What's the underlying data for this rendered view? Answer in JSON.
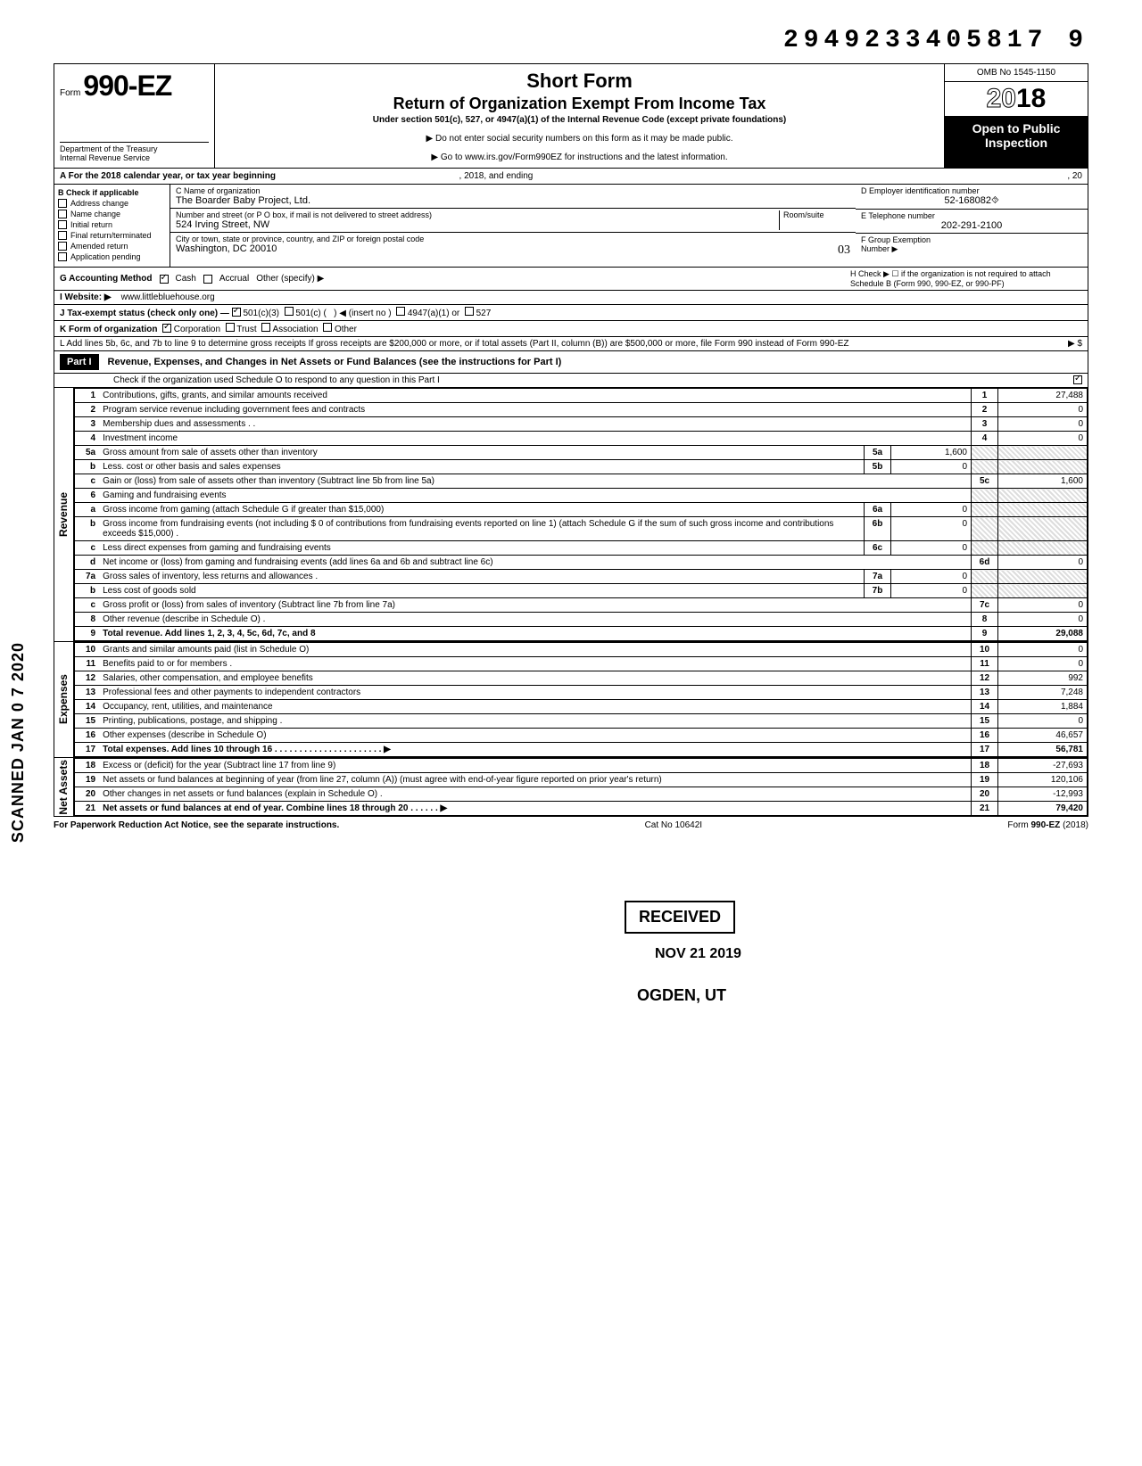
{
  "doc_id": "2949233405817 9",
  "header": {
    "form_prefix": "Form",
    "form_number": "990-EZ",
    "dept1": "Department of the Treasury",
    "dept2": "Internal Revenue Service",
    "title1": "Short Form",
    "title2": "Return of Organization Exempt From Income Tax",
    "subtitle": "Under section 501(c), 527, or 4947(a)(1) of the Internal Revenue Code (except private foundations)",
    "note1": "▶ Do not enter social security numbers on this form as it may be made public.",
    "note2": "▶ Go to www.irs.gov/Form990EZ for instructions and the latest information.",
    "omb": "OMB No 1545-1150",
    "year_prefix": "20",
    "year_suffix": "18",
    "open1": "Open to Public",
    "open2": "Inspection"
  },
  "rowA": {
    "left": "A For the 2018 calendar year, or tax year beginning",
    "mid": ", 2018, and ending",
    "right": ", 20"
  },
  "colB": {
    "header": "B Check if applicable",
    "items": [
      "Address change",
      "Name change",
      "Initial return",
      "Final return/terminated",
      "Amended return",
      "Application pending"
    ]
  },
  "colC": {
    "name_label": "C Name of organization",
    "name_val": "The Boarder Baby Project, Ltd.",
    "addr_label": "Number and street (or P O box, if mail is not delivered to street address)",
    "addr_room": "Room/suite",
    "addr_val": "524 Irving Street, NW",
    "city_label": "City or town, state or province, country, and ZIP or foreign postal code",
    "city_val": "Washington, DC 20010",
    "city_hand": "03"
  },
  "colDE": {
    "d_label": "D Employer identification number",
    "d_val": "52-168082⯑",
    "e_label": "E Telephone number",
    "e_val": "202-291-2100",
    "f_label": "F Group Exemption",
    "f_label2": "Number ▶"
  },
  "rowG": {
    "label": "G Accounting Method",
    "opt1": "Cash",
    "opt2": "Accrual",
    "opt3": "Other (specify) ▶",
    "h_label": "H Check ▶ ☐ if the organization is not required to attach Schedule B (Form 990, 990-EZ, or 990-PF)"
  },
  "rowI": {
    "label": "I  Website: ▶",
    "val": "www.littlebluehouse.org"
  },
  "rowJ": {
    "label": "J Tax-exempt status (check only one) —",
    "o1": "501(c)(3)",
    "o2": "501(c) (",
    "o2b": ") ◀ (insert no )",
    "o3": "4947(a)(1) or",
    "o4": "527"
  },
  "rowK": {
    "label": "K Form of organization",
    "o1": "Corporation",
    "o2": "Trust",
    "o3": "Association",
    "o4": "Other"
  },
  "rowL": {
    "text": "L Add lines 5b, 6c, and 7b to line 9 to determine gross receipts If gross receipts are $200,000 or more, or if total assets (Part II, column (B)) are $500,000 or more, file Form 990 instead of Form 990-EZ",
    "arrow": "▶   $"
  },
  "partI": {
    "label": "Part I",
    "title": "Revenue, Expenses, and Changes in Net Assets or Fund Balances (see the instructions for Part I)",
    "check": "Check if the organization used Schedule O to respond to any question in this Part I",
    "checkmark": "✓"
  },
  "sections": {
    "revenue": "Revenue",
    "expenses": "Expenses",
    "netassets": "Net Assets"
  },
  "lines": [
    {
      "n": "1",
      "d": "Contributions, gifts, grants, and similar amounts received",
      "box": "1",
      "amt": "27,488"
    },
    {
      "n": "2",
      "d": "Program service revenue including government fees and contracts",
      "box": "2",
      "amt": "0"
    },
    {
      "n": "3",
      "d": "Membership dues and assessments . .",
      "box": "3",
      "amt": "0"
    },
    {
      "n": "4",
      "d": "Investment income",
      "box": "4",
      "amt": "0"
    },
    {
      "n": "5a",
      "d": "Gross amount from sale of assets other than inventory",
      "ib": "5a",
      "ia": "1,600",
      "grey": true
    },
    {
      "n": "b",
      "d": "Less. cost or other basis and sales expenses",
      "ib": "5b",
      "ia": "0",
      "grey": true
    },
    {
      "n": "c",
      "d": "Gain or (loss) from sale of assets other than inventory (Subtract line 5b from line 5a)",
      "box": "5c",
      "amt": "1,600"
    },
    {
      "n": "6",
      "d": "Gaming and fundraising events",
      "grey": true,
      "noamt": true
    },
    {
      "n": "a",
      "d": "Gross income from gaming (attach Schedule G if greater than $15,000)",
      "ib": "6a",
      "ia": "0",
      "grey": true
    },
    {
      "n": "b",
      "d": "Gross income from fundraising events (not including $                    0 of contributions from fundraising events reported on line 1) (attach Schedule G if the sum of such gross income and contributions exceeds $15,000) .",
      "ib": "6b",
      "ia": "0",
      "grey": true
    },
    {
      "n": "c",
      "d": "Less direct expenses from gaming and fundraising events",
      "ib": "6c",
      "ia": "0",
      "grey": true
    },
    {
      "n": "d",
      "d": "Net income or (loss) from gaming and fundraising events (add lines 6a and 6b and subtract line 6c)",
      "box": "6d",
      "amt": "0"
    },
    {
      "n": "7a",
      "d": "Gross sales of inventory, less returns and allowances .",
      "ib": "7a",
      "ia": "0",
      "grey": true
    },
    {
      "n": "b",
      "d": "Less cost of goods sold",
      "ib": "7b",
      "ia": "0",
      "grey": true
    },
    {
      "n": "c",
      "d": "Gross profit or (loss) from sales of inventory (Subtract line 7b from line 7a)",
      "box": "7c",
      "amt": "0"
    },
    {
      "n": "8",
      "d": "Other revenue (describe in Schedule O) .",
      "box": "8",
      "amt": "0"
    },
    {
      "n": "9",
      "d": "Total revenue. Add lines 1, 2, 3, 4, 5c, 6d, 7c, and 8",
      "box": "9",
      "amt": "29,088",
      "bold": true
    }
  ],
  "exp_lines": [
    {
      "n": "10",
      "d": "Grants and similar amounts paid (list in Schedule O)",
      "box": "10",
      "amt": "0"
    },
    {
      "n": "11",
      "d": "Benefits paid to or for members .",
      "box": "11",
      "amt": "0"
    },
    {
      "n": "12",
      "d": "Salaries, other compensation, and employee benefits",
      "box": "12",
      "amt": "992"
    },
    {
      "n": "13",
      "d": "Professional fees and other payments to independent contractors",
      "box": "13",
      "amt": "7,248"
    },
    {
      "n": "14",
      "d": "Occupancy, rent, utilities, and maintenance",
      "box": "14",
      "amt": "1,884"
    },
    {
      "n": "15",
      "d": "Printing, publications, postage, and shipping .",
      "box": "15",
      "amt": "0"
    },
    {
      "n": "16",
      "d": "Other expenses (describe in Schedule O)",
      "box": "16",
      "amt": "46,657"
    },
    {
      "n": "17",
      "d": "Total expenses. Add lines 10 through 16 .   .   .   .   .   .   .   .   .   .   .   .   .   .   .   .   .   .   .   .   .   . ▶",
      "box": "17",
      "amt": "56,781",
      "bold": true
    }
  ],
  "na_lines": [
    {
      "n": "18",
      "d": "Excess or (deficit) for the year (Subtract line 17 from line 9)",
      "box": "18",
      "amt": "-27,693"
    },
    {
      "n": "19",
      "d": "Net assets or fund balances at beginning of year (from line 27, column (A)) (must agree with end-of-year figure reported on prior year's return)",
      "box": "19",
      "amt": "120,106"
    },
    {
      "n": "20",
      "d": "Other changes in net assets or fund balances (explain in Schedule O) .",
      "box": "20",
      "amt": "-12,993"
    },
    {
      "n": "21",
      "d": "Net assets or fund balances at end of year. Combine lines 18 through 20   .   .   .   .   .   . ▶",
      "box": "21",
      "amt": "79,420",
      "bold": true
    }
  ],
  "footer": {
    "left": "For Paperwork Reduction Act Notice, see the separate instructions.",
    "mid": "Cat No 10642I",
    "right": "Form 990-EZ (2018)"
  },
  "scanned": "SCANNED JAN 0 7 2020",
  "stamps": {
    "received": "RECEIVED",
    "date": "NOV 21 2019",
    "ogden": "OGDEN, UT"
  }
}
